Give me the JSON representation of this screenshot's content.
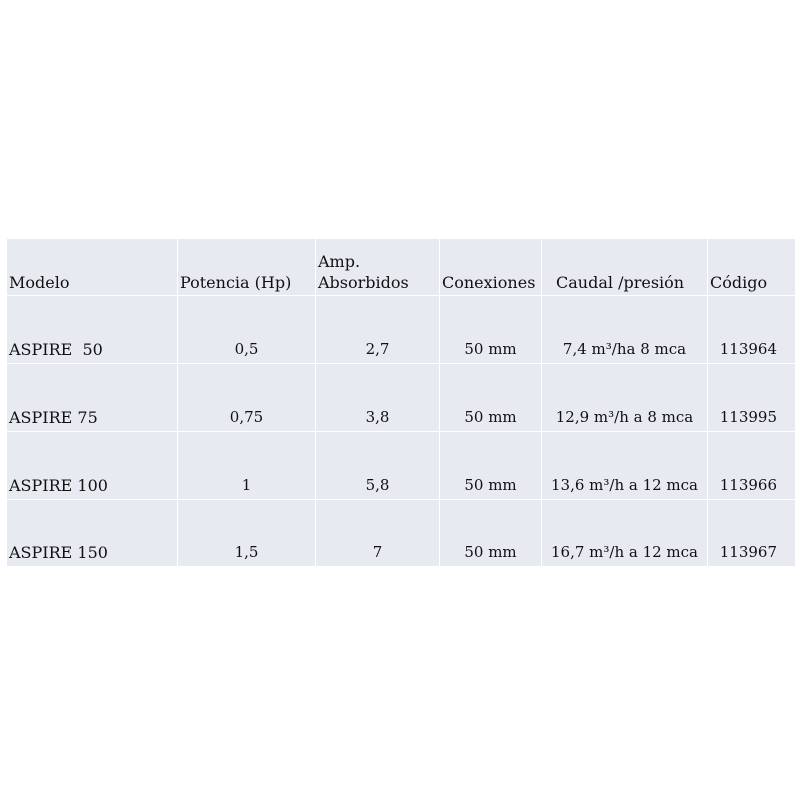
{
  "table": {
    "headers": {
      "modelo": "Modelo",
      "potencia": "Potencia (Hp)",
      "amperios": "Amp. Absorbidos",
      "conexiones": "Conexiones",
      "caudal": "Caudal /presión",
      "codigo": "Código"
    },
    "rows": [
      {
        "modelo": "ASPIRE  50",
        "potencia": "0,5",
        "amperios": "2,7",
        "conexiones": "50 mm",
        "caudal": "7,4 m³/ha 8 mca",
        "codigo": "113964"
      },
      {
        "modelo": "ASPIRE 75",
        "potencia": "0,75",
        "amperios": "3,8",
        "conexiones": "50 mm",
        "caudal": "12,9 m³/h a 8 mca",
        "codigo": "113995"
      },
      {
        "modelo": "ASPIRE 100",
        "potencia": "1",
        "amperios": "5,8",
        "conexiones": "50 mm",
        "caudal": "13,6 m³/h a 12 mca",
        "codigo": "113966"
      },
      {
        "modelo": "ASPIRE 150",
        "potencia": "1,5",
        "amperios": "7",
        "conexiones": "50 mm",
        "caudal": "16,7 m³/h a 12 mca",
        "codigo": "113967"
      }
    ]
  }
}
